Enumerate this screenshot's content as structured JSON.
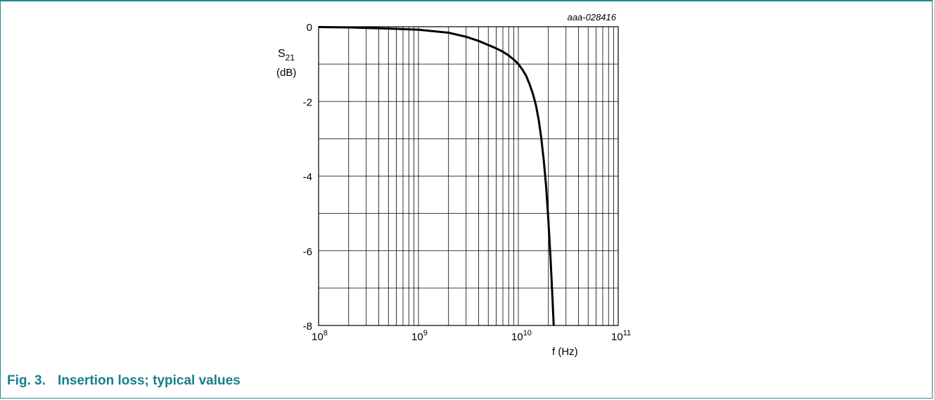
{
  "figure": {
    "id_label": "aaa-028416",
    "caption_number": "Fig. 3.",
    "caption_text": "Insertion loss; typical values",
    "frame_color": "#1f8a96",
    "caption_color": "#167f8c"
  },
  "chart_data": {
    "type": "line",
    "x_scale": "log",
    "xlim": [
      100000000,
      100000000000
    ],
    "ylim": [
      -8,
      0
    ],
    "xlabel": "f (Hz)",
    "ylabel": {
      "symbol": "S",
      "subscript": "21",
      "unit": "(dB)"
    },
    "x_ticks": [
      {
        "base": "10",
        "exp": "8"
      },
      {
        "base": "10",
        "exp": "9"
      },
      {
        "base": "10",
        "exp": "10"
      },
      {
        "base": "10",
        "exp": "11"
      }
    ],
    "y_ticks": [
      "0",
      "-2",
      "-4",
      "-6",
      "-8"
    ],
    "grid": true,
    "legend": "none",
    "series": [
      {
        "color": "#000000",
        "points": [
          [
            100000000,
            -0.01
          ],
          [
            200000000,
            -0.02
          ],
          [
            500000000,
            -0.05
          ],
          [
            1000000000,
            -0.08
          ],
          [
            2000000000,
            -0.16
          ],
          [
            3000000000,
            -0.27
          ],
          [
            4000000000,
            -0.38
          ],
          [
            5000000000,
            -0.49
          ],
          [
            6000000000,
            -0.58
          ],
          [
            7000000000,
            -0.67
          ],
          [
            8000000000,
            -0.77
          ],
          [
            9000000000,
            -0.88
          ],
          [
            10000000000,
            -1.0
          ],
          [
            11000000000,
            -1.15
          ],
          [
            12000000000,
            -1.32
          ],
          [
            13000000000,
            -1.55
          ],
          [
            14000000000,
            -1.8
          ],
          [
            15000000000,
            -2.1
          ],
          [
            16000000000,
            -2.5
          ],
          [
            17000000000,
            -3.0
          ],
          [
            18000000000,
            -3.6
          ],
          [
            19000000000,
            -4.3
          ],
          [
            20000000000,
            -5.2
          ],
          [
            21000000000,
            -6.2
          ],
          [
            22000000000,
            -7.3
          ],
          [
            22600000000,
            -8.0
          ]
        ]
      }
    ]
  }
}
